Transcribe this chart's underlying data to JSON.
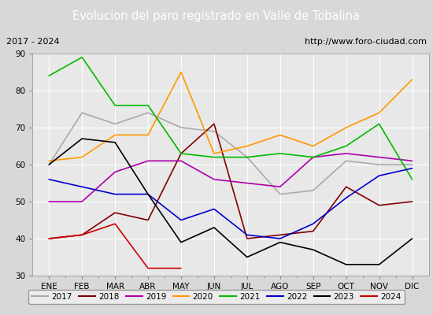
{
  "title": "Evolucion del paro registrado en Valle de Tobalina",
  "subtitle_left": "2017 - 2024",
  "subtitle_right": "http://www.foro-ciudad.com",
  "x_labels": [
    "ENE",
    "FEB",
    "MAR",
    "ABR",
    "MAY",
    "JUN",
    "JUL",
    "AGO",
    "SEP",
    "OCT",
    "NOV",
    "DIC"
  ],
  "ylim": [
    30,
    90
  ],
  "yticks": [
    30,
    40,
    50,
    60,
    70,
    80,
    90
  ],
  "series": {
    "2017": {
      "color": "#aaaaaa",
      "values": [
        60,
        74,
        71,
        74,
        70,
        69,
        62,
        52,
        53,
        61,
        60,
        60
      ]
    },
    "2018": {
      "color": "#800000",
      "values": [
        40,
        41,
        47,
        45,
        63,
        71,
        40,
        41,
        42,
        54,
        49,
        50
      ]
    },
    "2019": {
      "color": "#aa00aa",
      "values": [
        50,
        50,
        58,
        61,
        61,
        56,
        55,
        54,
        62,
        63,
        62,
        61
      ]
    },
    "2020": {
      "color": "#ff9900",
      "values": [
        61,
        62,
        68,
        68,
        85,
        63,
        65,
        68,
        65,
        70,
        74,
        83
      ]
    },
    "2021": {
      "color": "#00bb00",
      "values": [
        84,
        89,
        76,
        76,
        63,
        62,
        62,
        63,
        62,
        65,
        71,
        56
      ]
    },
    "2022": {
      "color": "#0000cc",
      "values": [
        56,
        54,
        52,
        52,
        45,
        48,
        41,
        40,
        44,
        51,
        57,
        59
      ]
    },
    "2023": {
      "color": "#000000",
      "values": [
        60,
        67,
        66,
        52,
        39,
        43,
        35,
        39,
        37,
        33,
        33,
        40
      ]
    },
    "2024": {
      "color": "#cc0000",
      "values": [
        40,
        41,
        44,
        32,
        32,
        null,
        null,
        null,
        null,
        null,
        null,
        null
      ]
    }
  },
  "bg_color": "#d8d8d8",
  "plot_bg_color": "#e8e8e8",
  "title_bg_color": "#4472c4",
  "title_color": "#ffffff",
  "grid_color": "#ffffff",
  "subtitle_bg_color": "#c8c8c8",
  "legend_bg_color": "#f0f0f0"
}
